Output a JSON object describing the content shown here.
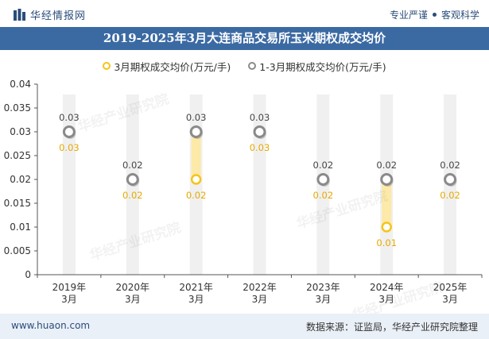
{
  "header": {
    "site_name": "华经情报网",
    "tagline_1": "专业严谨",
    "tagline_2": "客观科学"
  },
  "chart_title": "2019-2025年3月大连商品交易所玉米期权成交均价",
  "legend": {
    "series_1": "3月期权成交均价(万元/手)",
    "series_2": "1-3月期权成交均价(万元/手)"
  },
  "footer": {
    "url": "www.huaon.com",
    "source": "数据来源：证监局，华经产业研究院整理"
  },
  "watermark": "华经产业研究院",
  "colors": {
    "header_text": "#2a4d7a",
    "title_bg": "#3b6aa3",
    "series_1": "#f5c518",
    "series_1_fill": "#fde9a8",
    "series_2": "#999999",
    "column_bg": "#f0f0f0",
    "footer_bg": "#eaf0f7"
  },
  "chart_data": {
    "type": "line",
    "categories": [
      "2019年\n3月",
      "2020年\n3月",
      "2021年\n3月",
      "2022年\n3月",
      "2023年\n3月",
      "2024年\n3月",
      "2025年\n3月"
    ],
    "series": [
      {
        "name": "3月期权成交均价(万元/手)",
        "values": [
          0.03,
          0.02,
          0.02,
          0.03,
          0.02,
          0.01,
          0.02
        ],
        "labels": [
          "0.03",
          "0.02",
          "0.02",
          "0.03",
          "0.02",
          "0.01",
          "0.02"
        ]
      },
      {
        "name": "1-3月期权成交均价(万元/手)",
        "values": [
          0.03,
          0.02,
          0.03,
          0.03,
          0.02,
          0.02,
          0.02
        ],
        "labels": [
          "0.03",
          "0.02",
          "0.03",
          "0.03",
          "0.02",
          "0.02",
          "0.02"
        ]
      }
    ],
    "ylim": [
      0,
      0.04
    ],
    "yticks": [
      "0",
      "0.005",
      "0.01",
      "0.015",
      "0.02",
      "0.025",
      "0.03",
      "0.035",
      "0.04"
    ],
    "xlabel": "",
    "ylabel": "",
    "grid": false,
    "legend_position": "top-center"
  }
}
